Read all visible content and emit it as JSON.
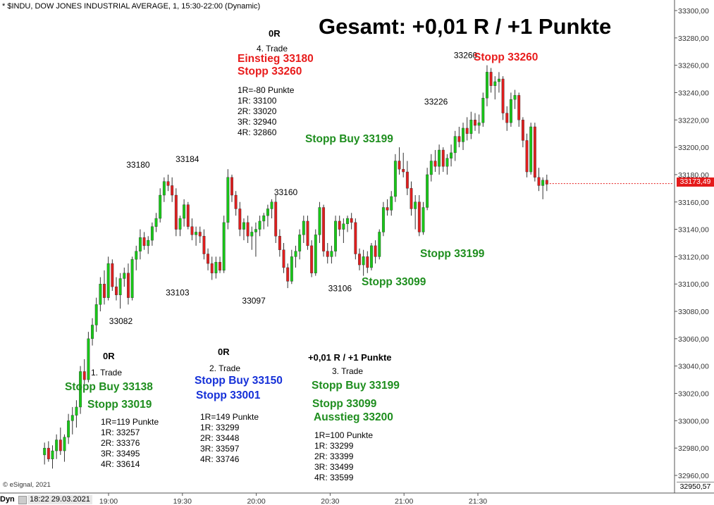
{
  "header": {
    "title": "* $INDU, DOW JONES INDUSTRIAL AVERAGE, 1, 15:30-22:00 (Dynamic)"
  },
  "summary": "Gesamt: +0,01 R / +1 Punkte",
  "footer": {
    "logo": "© eSignal, 2021",
    "mode_button": "Dyn",
    "datetime": "18:22 29.03.2021",
    "last_price_label": "33173,49",
    "bottom_price_label": "32950,57"
  },
  "colors": {
    "up": "#18c818",
    "down": "#e01e1e",
    "green_text": "#1e8e1e",
    "red_text": "#e81c1c",
    "blue_text": "#1530d8",
    "price_tag": "#e41b1b"
  },
  "trade1": {
    "result": "0R",
    "name": "1. Trade",
    "entry": "Stopp Buy 33138",
    "stop": "Stopp 33019",
    "r1": "1R=119 Punkte",
    "l1": "1R: 33257",
    "l2": "2R: 33376",
    "l3": "3R: 33495",
    "l4": "4R: 33614"
  },
  "trade2": {
    "result": "0R",
    "name": "2. Trade",
    "entry": "Stopp Buy 33150",
    "stop": "Stopp 33001",
    "r1": "1R=149 Punkte",
    "l1": "1R: 33299",
    "l2": "2R: 33448",
    "l3": "3R: 33597",
    "l4": "4R: 33746"
  },
  "trade3": {
    "result": "+0,01 R / +1 Punkte",
    "name": "3. Trade",
    "entry": "Stopp Buy 33199",
    "stop": "Stopp 33099",
    "exit": "Ausstieg 33200",
    "r1": "1R=100 Punkte",
    "l1": "1R: 33299",
    "l2": "2R: 33399",
    "l3": "3R: 33499",
    "l4": "4R: 33599"
  },
  "trade4": {
    "result": "0R",
    "name": "4. Trade",
    "entry": "Einstieg 33180",
    "stop": "Stopp 33260",
    "r1": "1R=-80 Punkte",
    "l1": "1R: 33100",
    "l2": "2R: 33020",
    "l3": "3R: 32940",
    "l4": "4R: 32860"
  },
  "chart_annotations": {
    "stopp_buy_33199_top": "Stopp Buy 33199",
    "stopp_33260_top": "Stopp 33260",
    "stopp_33199_mid": "Stopp 33199",
    "stopp_33099_mid": "Stopp 33099"
  },
  "chart_data": {
    "type": "candlestick",
    "title": "* $INDU, DOW JONES INDUSTRIAL AVERAGE, 1, 15:30-22:00 (Dynamic)",
    "xlabel": "",
    "ylabel": "",
    "ylim": [
      32946,
      33304
    ],
    "xlim": [
      "18:34",
      "21:58"
    ],
    "grid": false,
    "y_ticks": [
      "33300,00",
      "33280,00",
      "33260,00",
      "33240,00",
      "33220,00",
      "33200,00",
      "33180,00",
      "33160,00",
      "33140,00",
      "33120,00",
      "33100,00",
      "33080,00",
      "33060,00",
      "33040,00",
      "33020,00",
      "33000,00",
      "32980,00",
      "32960,00"
    ],
    "y_tick_values": [
      33300,
      33280,
      33260,
      33240,
      33220,
      33200,
      33180,
      33160,
      33140,
      33120,
      33100,
      33080,
      33060,
      33040,
      33020,
      33000,
      32980,
      32960
    ],
    "x_ticks": [
      "19:00",
      "19:30",
      "20:00",
      "20:30",
      "21:00",
      "21:30"
    ],
    "x_tick_times": [
      "19:00",
      "19:30",
      "20:00",
      "20:30",
      "21:00",
      "21:30"
    ],
    "last_price": 33173.49,
    "price_annotations": [
      {
        "label": "33082",
        "time": "19:05",
        "value": 33082
      },
      {
        "label": "33180",
        "time": "19:12",
        "value": 33180
      },
      {
        "label": "33103",
        "time": "19:28",
        "value": 33103
      },
      {
        "label": "33184",
        "time": "19:32",
        "value": 33184
      },
      {
        "label": "33097",
        "time": "19:59",
        "value": 33097
      },
      {
        "label": "33160",
        "time": "20:12",
        "value": 33160
      },
      {
        "label": "33106",
        "time": "20:34",
        "value": 33106
      },
      {
        "label": "33226",
        "time": "21:13",
        "value": 33226
      },
      {
        "label": "33260",
        "time": "21:25",
        "value": 33260
      }
    ],
    "candles": [
      {
        "o": 32975,
        "h": 32984,
        "l": 32968,
        "c": 32980
      },
      {
        "o": 32980,
        "h": 32985,
        "l": 32970,
        "c": 32972
      },
      {
        "o": 32972,
        "h": 32982,
        "l": 32965,
        "c": 32978
      },
      {
        "o": 32978,
        "h": 32990,
        "l": 32972,
        "c": 32986
      },
      {
        "o": 32986,
        "h": 32995,
        "l": 32975,
        "c": 32978
      },
      {
        "o": 32978,
        "h": 32990,
        "l": 32970,
        "c": 32988
      },
      {
        "o": 32988,
        "h": 33005,
        "l": 32983,
        "c": 33000
      },
      {
        "o": 33000,
        "h": 33010,
        "l": 32990,
        "c": 33004
      },
      {
        "o": 33004,
        "h": 33015,
        "l": 32995,
        "c": 33010
      },
      {
        "o": 33010,
        "h": 33040,
        "l": 33005,
        "c": 33036
      },
      {
        "o": 33036,
        "h": 33045,
        "l": 33025,
        "c": 33030
      },
      {
        "o": 33030,
        "h": 33065,
        "l": 33028,
        "c": 33060
      },
      {
        "o": 33060,
        "h": 33075,
        "l": 33055,
        "c": 33070
      },
      {
        "o": 33070,
        "h": 33090,
        "l": 33065,
        "c": 33085
      },
      {
        "o": 33085,
        "h": 33105,
        "l": 33080,
        "c": 33100
      },
      {
        "o": 33100,
        "h": 33110,
        "l": 33085,
        "c": 33090
      },
      {
        "o": 33090,
        "h": 33120,
        "l": 33088,
        "c": 33115
      },
      {
        "o": 33115,
        "h": 33118,
        "l": 33095,
        "c": 33098
      },
      {
        "o": 33098,
        "h": 33105,
        "l": 33088,
        "c": 33092
      },
      {
        "o": 33092,
        "h": 33108,
        "l": 33082,
        "c": 33104
      },
      {
        "o": 33104,
        "h": 33112,
        "l": 33098,
        "c": 33108
      },
      {
        "o": 33108,
        "h": 33115,
        "l": 33085,
        "c": 33090
      },
      {
        "o": 33090,
        "h": 33120,
        "l": 33088,
        "c": 33118
      },
      {
        "o": 33118,
        "h": 33128,
        "l": 33110,
        "c": 33124
      },
      {
        "o": 33124,
        "h": 33140,
        "l": 33118,
        "c": 33134
      },
      {
        "o": 33134,
        "h": 33138,
        "l": 33125,
        "c": 33128
      },
      {
        "o": 33128,
        "h": 33135,
        "l": 33122,
        "c": 33132
      },
      {
        "o": 33132,
        "h": 33145,
        "l": 33128,
        "c": 33142
      },
      {
        "o": 33142,
        "h": 33152,
        "l": 33138,
        "c": 33148
      },
      {
        "o": 33148,
        "h": 33170,
        "l": 33145,
        "c": 33165
      },
      {
        "o": 33165,
        "h": 33178,
        "l": 33160,
        "c": 33175
      },
      {
        "o": 33175,
        "h": 33180,
        "l": 33168,
        "c": 33172
      },
      {
        "o": 33172,
        "h": 33178,
        "l": 33160,
        "c": 33165
      },
      {
        "o": 33165,
        "h": 33170,
        "l": 33135,
        "c": 33140
      },
      {
        "o": 33140,
        "h": 33150,
        "l": 33135,
        "c": 33148
      },
      {
        "o": 33148,
        "h": 33162,
        "l": 33142,
        "c": 33158
      },
      {
        "o": 33158,
        "h": 33160,
        "l": 33140,
        "c": 33142
      },
      {
        "o": 33142,
        "h": 33148,
        "l": 33132,
        "c": 33136
      },
      {
        "o": 33136,
        "h": 33142,
        "l": 33128,
        "c": 33138
      },
      {
        "o": 33138,
        "h": 33142,
        "l": 33130,
        "c": 33135
      },
      {
        "o": 33135,
        "h": 33140,
        "l": 33118,
        "c": 33122
      },
      {
        "o": 33122,
        "h": 33126,
        "l": 33110,
        "c": 33115
      },
      {
        "o": 33115,
        "h": 33120,
        "l": 33103,
        "c": 33108
      },
      {
        "o": 33108,
        "h": 33120,
        "l": 33104,
        "c": 33116
      },
      {
        "o": 33116,
        "h": 33120,
        "l": 33108,
        "c": 33110
      },
      {
        "o": 33110,
        "h": 33150,
        "l": 33108,
        "c": 33145
      },
      {
        "o": 33145,
        "h": 33184,
        "l": 33140,
        "c": 33178
      },
      {
        "o": 33178,
        "h": 33180,
        "l": 33160,
        "c": 33165
      },
      {
        "o": 33165,
        "h": 33168,
        "l": 33150,
        "c": 33155
      },
      {
        "o": 33155,
        "h": 33160,
        "l": 33135,
        "c": 33140
      },
      {
        "o": 33140,
        "h": 33148,
        "l": 33132,
        "c": 33145
      },
      {
        "o": 33145,
        "h": 33150,
        "l": 33130,
        "c": 33135
      },
      {
        "o": 33135,
        "h": 33142,
        "l": 33125,
        "c": 33138
      },
      {
        "o": 33138,
        "h": 33145,
        "l": 33120,
        "c": 33140
      },
      {
        "o": 33140,
        "h": 33150,
        "l": 33135,
        "c": 33146
      },
      {
        "o": 33146,
        "h": 33152,
        "l": 33140,
        "c": 33150
      },
      {
        "o": 33150,
        "h": 33158,
        "l": 33142,
        "c": 33155
      },
      {
        "o": 33155,
        "h": 33162,
        "l": 33148,
        "c": 33160
      },
      {
        "o": 33160,
        "h": 33165,
        "l": 33130,
        "c": 33135
      },
      {
        "o": 33135,
        "h": 33140,
        "l": 33120,
        "c": 33125
      },
      {
        "o": 33125,
        "h": 33130,
        "l": 33108,
        "c": 33112
      },
      {
        "o": 33112,
        "h": 33115,
        "l": 33097,
        "c": 33102
      },
      {
        "o": 33102,
        "h": 33125,
        "l": 33100,
        "c": 33120
      },
      {
        "o": 33120,
        "h": 33128,
        "l": 33112,
        "c": 33124
      },
      {
        "o": 33124,
        "h": 33140,
        "l": 33118,
        "c": 33136
      },
      {
        "o": 33136,
        "h": 33150,
        "l": 33130,
        "c": 33146
      },
      {
        "o": 33146,
        "h": 33150,
        "l": 33125,
        "c": 33128
      },
      {
        "o": 33128,
        "h": 33132,
        "l": 33105,
        "c": 33108
      },
      {
        "o": 33108,
        "h": 33140,
        "l": 33106,
        "c": 33136
      },
      {
        "o": 33136,
        "h": 33160,
        "l": 33130,
        "c": 33156
      },
      {
        "o": 33156,
        "h": 33158,
        "l": 33120,
        "c": 33124
      },
      {
        "o": 33124,
        "h": 33130,
        "l": 33115,
        "c": 33120
      },
      {
        "o": 33120,
        "h": 33128,
        "l": 33115,
        "c": 33124
      },
      {
        "o": 33124,
        "h": 33150,
        "l": 33120,
        "c": 33146
      },
      {
        "o": 33146,
        "h": 33150,
        "l": 33135,
        "c": 33140
      },
      {
        "o": 33140,
        "h": 33148,
        "l": 33130,
        "c": 33144
      },
      {
        "o": 33144,
        "h": 33150,
        "l": 33138,
        "c": 33148
      },
      {
        "o": 33148,
        "h": 33152,
        "l": 33140,
        "c": 33145
      },
      {
        "o": 33145,
        "h": 33148,
        "l": 33118,
        "c": 33122
      },
      {
        "o": 33122,
        "h": 33126,
        "l": 33110,
        "c": 33114
      },
      {
        "o": 33114,
        "h": 33125,
        "l": 33106,
        "c": 33120
      },
      {
        "o": 33120,
        "h": 33124,
        "l": 33108,
        "c": 33112
      },
      {
        "o": 33112,
        "h": 33130,
        "l": 33110,
        "c": 33128
      },
      {
        "o": 33128,
        "h": 33132,
        "l": 33115,
        "c": 33120
      },
      {
        "o": 33120,
        "h": 33140,
        "l": 33118,
        "c": 33138
      },
      {
        "o": 33138,
        "h": 33160,
        "l": 33135,
        "c": 33156
      },
      {
        "o": 33156,
        "h": 33162,
        "l": 33150,
        "c": 33154
      },
      {
        "o": 33154,
        "h": 33168,
        "l": 33150,
        "c": 33164
      },
      {
        "o": 33164,
        "h": 33195,
        "l": 33160,
        "c": 33190
      },
      {
        "o": 33190,
        "h": 33200,
        "l": 33180,
        "c": 33184
      },
      {
        "o": 33184,
        "h": 33196,
        "l": 33178,
        "c": 33182
      },
      {
        "o": 33182,
        "h": 33190,
        "l": 33165,
        "c": 33170
      },
      {
        "o": 33170,
        "h": 33175,
        "l": 33150,
        "c": 33155
      },
      {
        "o": 33155,
        "h": 33165,
        "l": 33140,
        "c": 33160
      },
      {
        "o": 33160,
        "h": 33165,
        "l": 33135,
        "c": 33138
      },
      {
        "o": 33138,
        "h": 33160,
        "l": 33136,
        "c": 33156
      },
      {
        "o": 33156,
        "h": 33185,
        "l": 33154,
        "c": 33180
      },
      {
        "o": 33180,
        "h": 33195,
        "l": 33175,
        "c": 33190
      },
      {
        "o": 33190,
        "h": 33198,
        "l": 33182,
        "c": 33186
      },
      {
        "o": 33186,
        "h": 33202,
        "l": 33180,
        "c": 33198
      },
      {
        "o": 33198,
        "h": 33200,
        "l": 33182,
        "c": 33186
      },
      {
        "o": 33186,
        "h": 33195,
        "l": 33180,
        "c": 33192
      },
      {
        "o": 33192,
        "h": 33202,
        "l": 33186,
        "c": 33196
      },
      {
        "o": 33196,
        "h": 33212,
        "l": 33190,
        "c": 33208
      },
      {
        "o": 33208,
        "h": 33215,
        "l": 33200,
        "c": 33204
      },
      {
        "o": 33204,
        "h": 33218,
        "l": 33198,
        "c": 33214
      },
      {
        "o": 33214,
        "h": 33222,
        "l": 33205,
        "c": 33210
      },
      {
        "o": 33210,
        "h": 33226,
        "l": 33206,
        "c": 33220
      },
      {
        "o": 33220,
        "h": 33225,
        "l": 33212,
        "c": 33216
      },
      {
        "o": 33216,
        "h": 33224,
        "l": 33210,
        "c": 33218
      },
      {
        "o": 33218,
        "h": 33240,
        "l": 33215,
        "c": 33236
      },
      {
        "o": 33236,
        "h": 33260,
        "l": 33230,
        "c": 33255
      },
      {
        "o": 33255,
        "h": 33258,
        "l": 33240,
        "c": 33245
      },
      {
        "o": 33245,
        "h": 33252,
        "l": 33235,
        "c": 33248
      },
      {
        "o": 33248,
        "h": 33255,
        "l": 33240,
        "c": 33250
      },
      {
        "o": 33250,
        "h": 33252,
        "l": 33220,
        "c": 33225
      },
      {
        "o": 33225,
        "h": 33230,
        "l": 33212,
        "c": 33218
      },
      {
        "o": 33218,
        "h": 33240,
        "l": 33215,
        "c": 33235
      },
      {
        "o": 33235,
        "h": 33242,
        "l": 33228,
        "c": 33238
      },
      {
        "o": 33238,
        "h": 33240,
        "l": 33215,
        "c": 33220
      },
      {
        "o": 33220,
        "h": 33222,
        "l": 33200,
        "c": 33205
      },
      {
        "o": 33205,
        "h": 33210,
        "l": 33178,
        "c": 33182
      },
      {
        "o": 33182,
        "h": 33218,
        "l": 33180,
        "c": 33215
      },
      {
        "o": 33215,
        "h": 33218,
        "l": 33175,
        "c": 33178
      },
      {
        "o": 33178,
        "h": 33185,
        "l": 33168,
        "c": 33172
      },
      {
        "o": 33172,
        "h": 33178,
        "l": 33162,
        "c": 33176
      },
      {
        "o": 33176,
        "h": 33180,
        "l": 33168,
        "c": 33173
      }
    ]
  }
}
